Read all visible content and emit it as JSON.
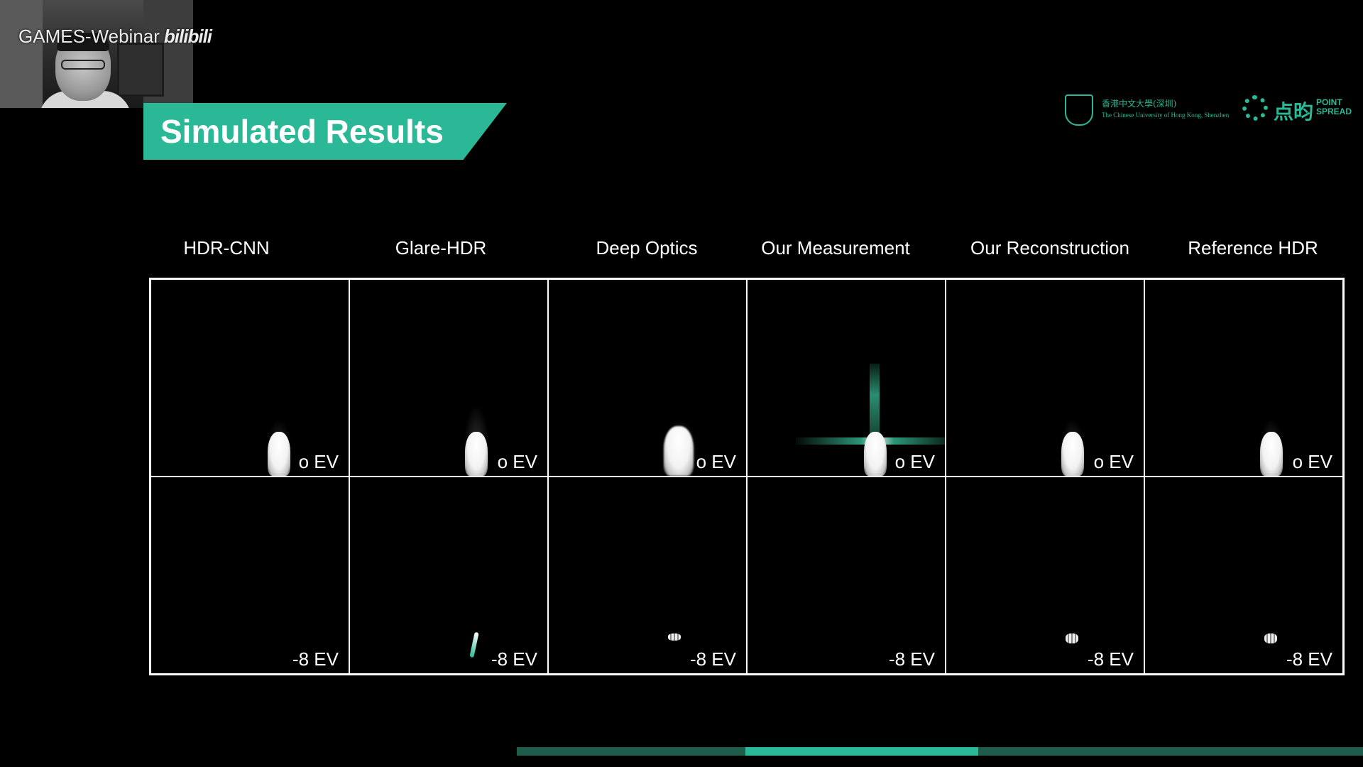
{
  "overlay": {
    "watermark_text": "GAMES-Webinar",
    "watermark_brand": "bilibili"
  },
  "slide": {
    "title": "Simulated Results",
    "logos": {
      "cuhk_cn": "香港中文大學(深圳)",
      "cuhk_en": "The Chinese University of Hong Kong, Shenzhen",
      "pointspread_cn": "点昀",
      "pointspread_en": "POINT SPREAD"
    },
    "columns": [
      "HDR-CNN",
      "Glare-HDR",
      "Deep Optics",
      "Our Measurement",
      "Our Reconstruction",
      "Reference HDR"
    ],
    "rows": [
      {
        "ev": [
          "o EV",
          "o EV",
          "o EV",
          "o EV",
          "o EV",
          "o EV"
        ]
      },
      {
        "ev": [
          "-8 EV",
          "-8 EV",
          "-8 EV",
          "-8 EV",
          "-8 EV",
          "-8 EV"
        ]
      }
    ]
  },
  "progress": {
    "segment_start": 0.27,
    "segment_end": 0.545
  },
  "colors": {
    "accent": "#2ab896",
    "background": "#000000",
    "progress_track": "#1f5c4c"
  }
}
